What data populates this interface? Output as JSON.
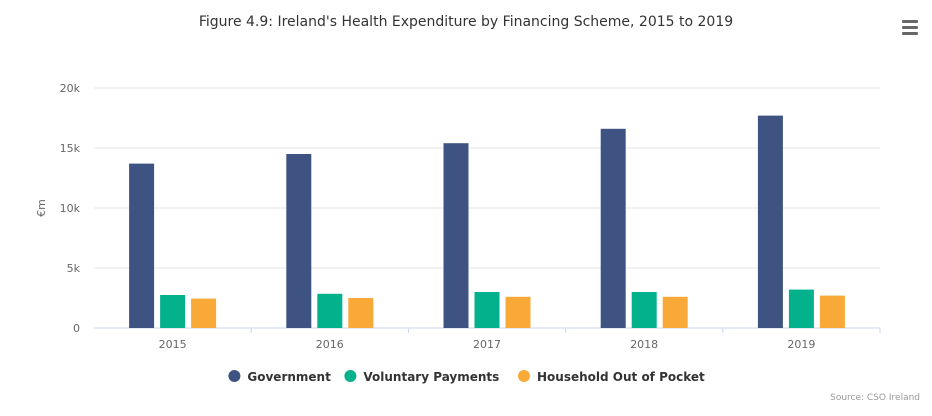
{
  "title": "Figure 4.9: Ireland's Health Expenditure by Financing Scheme, 2015 to 2019",
  "menu_icon": "hamburger-menu-icon",
  "source": "Source: CSO Ireland",
  "chart_data": {
    "type": "bar",
    "title": "Figure 4.9: Ireland's Health Expenditure by Financing Scheme, 2015 to 2019",
    "xlabel": "",
    "ylabel": "€m",
    "categories": [
      "2015",
      "2016",
      "2017",
      "2018",
      "2019"
    ],
    "ylim": [
      0,
      20000
    ],
    "yticks": [
      0,
      5000,
      10000,
      15000,
      20000
    ],
    "ytick_labels": [
      "0",
      "5k",
      "10k",
      "15k",
      "20k"
    ],
    "grid": true,
    "legend_position": "bottom",
    "series": [
      {
        "name": "Government",
        "color": "#3f5382",
        "values": [
          13700,
          14500,
          15400,
          16600,
          17700
        ]
      },
      {
        "name": "Voluntary Payments",
        "color": "#03b28c",
        "values": [
          2750,
          2850,
          3000,
          3000,
          3200
        ]
      },
      {
        "name": "Household Out of Pocket",
        "color": "#f9a938",
        "values": [
          2450,
          2500,
          2600,
          2600,
          2700
        ]
      }
    ]
  }
}
